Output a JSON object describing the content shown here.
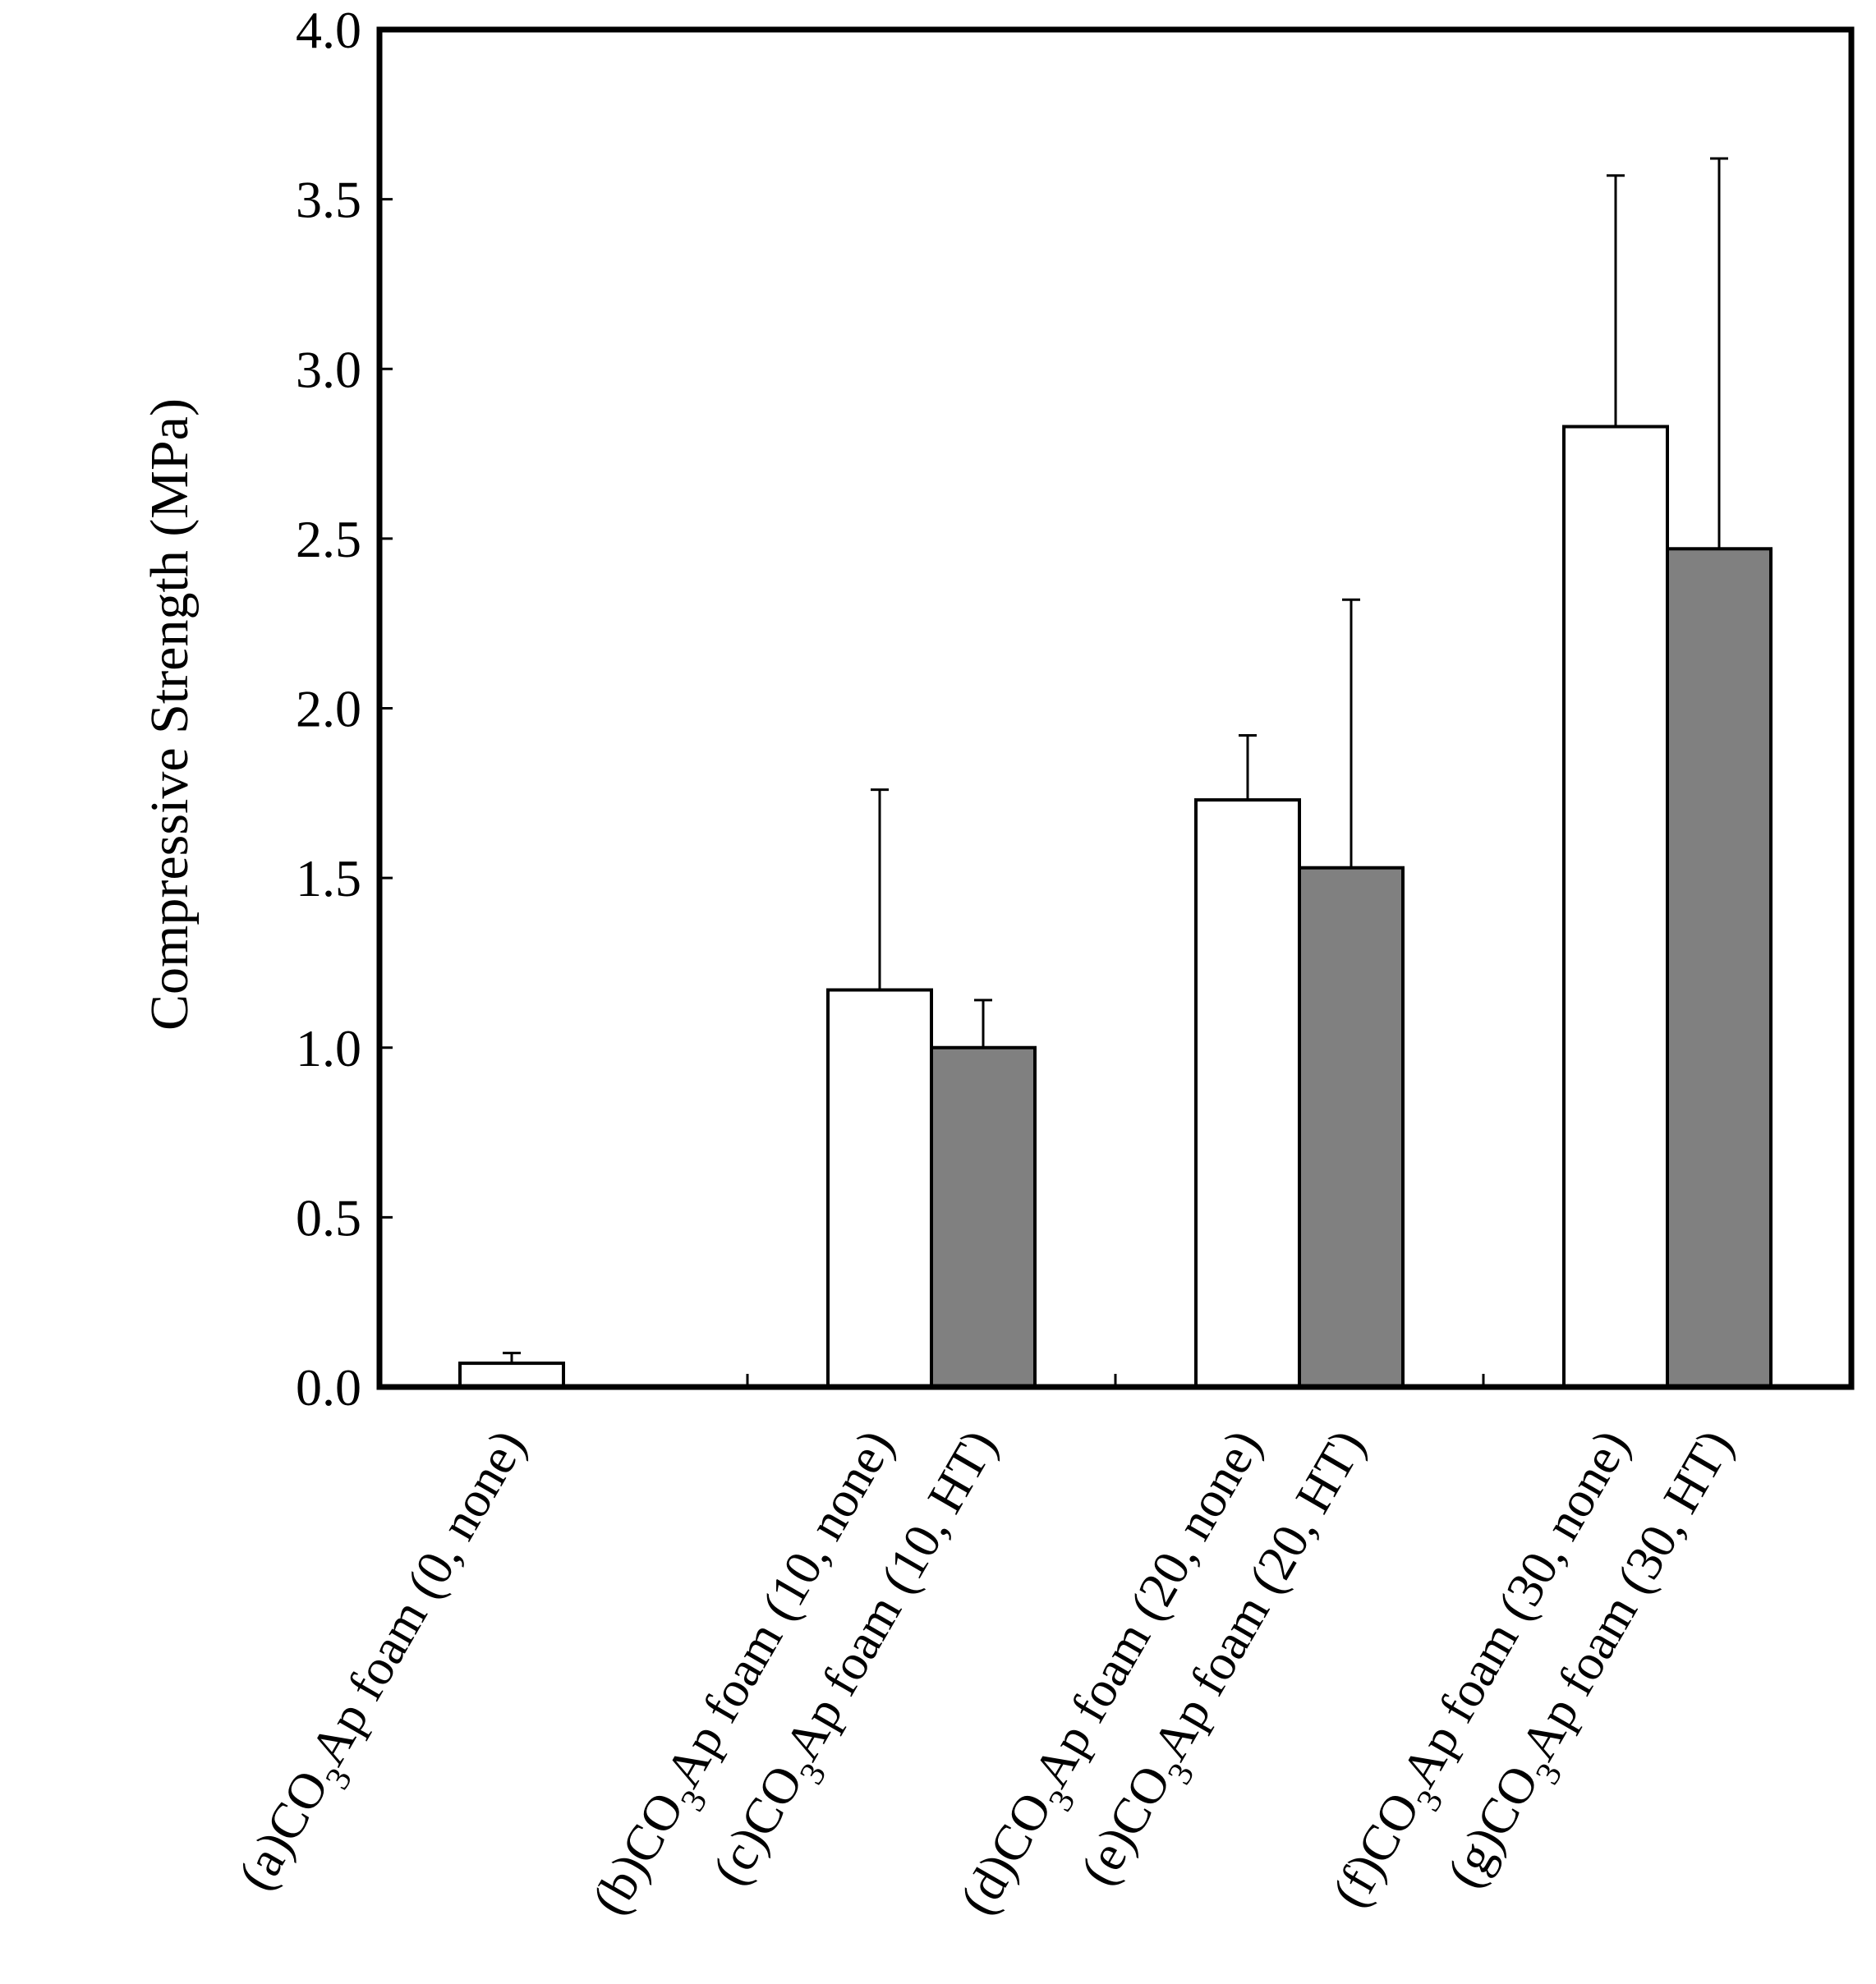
{
  "chart_data": {
    "type": "bar",
    "title": "",
    "xlabel": "",
    "ylabel": "Compressive Strength (MPa)",
    "ylim": [
      0,
      4.0
    ],
    "yticks": [
      "0.0",
      "0.5",
      "1.0",
      "1.5",
      "2.0",
      "2.5",
      "3.0",
      "3.5",
      "4.0"
    ],
    "grid": false,
    "legend": "none",
    "groups": 4,
    "categories": [
      {
        "prefix": "(a)CO",
        "sub": "3",
        "suffix": "Ap foam (0, none)",
        "value": 0.07,
        "error": 0.03,
        "color": "#ffffff",
        "group": 0,
        "slot": 0
      },
      {
        "prefix": "(b)CO",
        "sub": "3",
        "suffix": "Ap foam (10, none)",
        "value": 1.17,
        "error": 0.59,
        "color": "#ffffff",
        "group": 1,
        "slot": 0
      },
      {
        "prefix": "(c)CO",
        "sub": "3",
        "suffix": "Ap foam (10, HT)",
        "value": 1.0,
        "error": 0.14,
        "color": "#808080",
        "group": 1,
        "slot": 1
      },
      {
        "prefix": "(d)CO",
        "sub": "3",
        "suffix": "Ap foam (20, none)",
        "value": 1.73,
        "error": 0.19,
        "color": "#ffffff",
        "group": 2,
        "slot": 0
      },
      {
        "prefix": "(e)CO",
        "sub": "3",
        "suffix": "Ap foam (20, HT)",
        "value": 1.53,
        "error": 0.79,
        "color": "#808080",
        "group": 2,
        "slot": 1
      },
      {
        "prefix": "(f)CO",
        "sub": "3",
        "suffix": "Ap foam (30, none)",
        "value": 2.83,
        "error": 0.74,
        "color": "#ffffff",
        "group": 3,
        "slot": 0
      },
      {
        "prefix": "(g)CO",
        "sub": "3",
        "suffix": "Ap foam (30, HT)",
        "value": 2.47,
        "error": 1.15,
        "color": "#808080",
        "group": 3,
        "slot": 1
      }
    ]
  }
}
